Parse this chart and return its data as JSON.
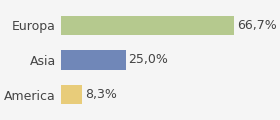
{
  "categories": [
    "America",
    "Asia",
    "Europa"
  ],
  "values": [
    8.3,
    25.0,
    66.7
  ],
  "labels": [
    "8,3%",
    "25,0%",
    "66,7%"
  ],
  "colors": [
    "#e8cc7a",
    "#7087b8",
    "#b5c98e"
  ],
  "background_color": "#f5f5f5",
  "xlim": [
    0,
    82
  ],
  "label_fontsize": 9,
  "tick_fontsize": 9
}
